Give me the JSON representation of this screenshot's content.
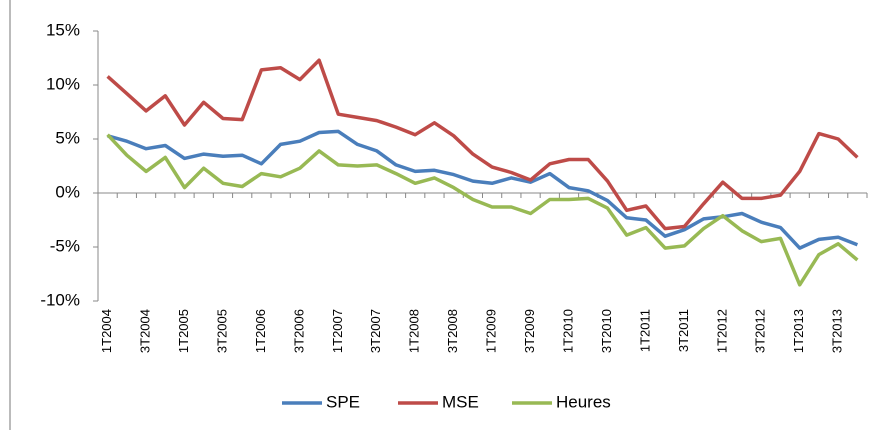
{
  "chart_data": {
    "type": "line",
    "categories": [
      "1T2004",
      null,
      "3T2004",
      null,
      "1T2005",
      null,
      "3T2005",
      null,
      "1T2006",
      null,
      "3T2006",
      null,
      "1T2007",
      null,
      "3T2007",
      null,
      "1T2008",
      null,
      "3T2008",
      null,
      "1T2009",
      null,
      "3T2009",
      null,
      "1T2010",
      null,
      "3T2010",
      null,
      "1T2011",
      null,
      "3T2011",
      null,
      "1T2012",
      null,
      "3T2012",
      null,
      "1T2013",
      null,
      "3T2013",
      null
    ],
    "series": [
      {
        "name": "SPE",
        "color": "#4a7ebb",
        "values": [
          5.3,
          4.8,
          4.1,
          4.4,
          3.2,
          3.6,
          3.4,
          3.5,
          2.7,
          4.5,
          4.8,
          5.6,
          5.7,
          4.5,
          3.9,
          2.6,
          2.0,
          2.1,
          1.7,
          1.1,
          0.9,
          1.4,
          1.0,
          1.8,
          0.5,
          0.2,
          -0.7,
          -2.3,
          -2.5,
          -4.0,
          -3.4,
          -2.4,
          -2.2,
          -1.9,
          -2.7,
          -3.2,
          -5.1,
          -4.3,
          -4.1,
          -4.8
        ]
      },
      {
        "name": "MSE",
        "color": "#be4b48",
        "values": [
          10.8,
          9.2,
          7.6,
          9.0,
          6.3,
          8.4,
          6.9,
          6.8,
          11.4,
          11.6,
          10.5,
          12.3,
          7.3,
          7.0,
          6.7,
          6.1,
          5.4,
          6.5,
          5.3,
          3.6,
          2.4,
          1.9,
          1.2,
          2.7,
          3.1,
          3.1,
          1.1,
          -1.6,
          -1.2,
          -3.3,
          -3.1,
          -1.0,
          1.0,
          -0.5,
          -0.5,
          -0.2,
          2.0,
          5.5,
          5.0,
          3.3
        ]
      },
      {
        "name": "Heures",
        "color": "#98b954",
        "values": [
          5.4,
          3.5,
          2.0,
          3.3,
          0.5,
          2.3,
          0.9,
          0.6,
          1.8,
          1.5,
          2.3,
          3.9,
          2.6,
          2.5,
          2.6,
          1.8,
          0.9,
          1.4,
          0.5,
          -0.6,
          -1.3,
          -1.3,
          -1.9,
          -0.6,
          -0.6,
          -0.5,
          -1.4,
          -3.9,
          -3.2,
          -5.1,
          -4.9,
          -3.3,
          -2.1,
          -3.5,
          -4.5,
          -4.2,
          -8.5,
          -5.7,
          -4.7,
          -6.2
        ]
      }
    ],
    "ylim": [
      -10,
      15
    ],
    "yticks": [
      {
        "value": -10,
        "label": "-10%"
      },
      {
        "value": -5,
        "label": "-5%"
      },
      {
        "value": 0,
        "label": "0%"
      },
      {
        "value": 5,
        "label": "5%"
      },
      {
        "value": 10,
        "label": "10%"
      },
      {
        "value": 15,
        "label": "15%"
      }
    ],
    "grid": false,
    "legend": "bottom"
  }
}
